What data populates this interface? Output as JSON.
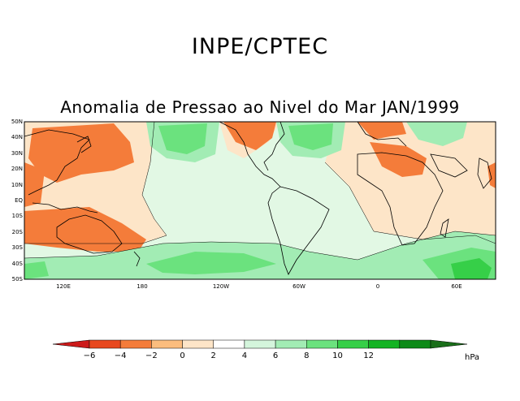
{
  "header": {
    "title": "INPE/CPTEC"
  },
  "map": {
    "title": "Anomalia de Pressao ao Nivel do Mar JAN/1999",
    "lat_labels": [
      "50N",
      "40N",
      "30N",
      "20N",
      "10N",
      "EQ",
      "10S",
      "20S",
      "30S",
      "40S",
      "50S"
    ],
    "lon_labels": [
      "120E",
      "180",
      "120W",
      "60W",
      "0",
      "60E"
    ]
  },
  "colorbar": {
    "labels": [
      "−6",
      "−4",
      "−2",
      "0",
      "2",
      "4",
      "6",
      "8",
      "10",
      "12"
    ],
    "unit": "hPa",
    "colors": [
      "#cc1a1a",
      "#e8481e",
      "#f47c3a",
      "#fbbd7e",
      "#fde5c8",
      "#ffffff",
      "#d4f5dc",
      "#a2ecb4",
      "#6be27e",
      "#36cf48",
      "#13b323",
      "#0d8a18",
      "#1a6e1a"
    ]
  },
  "palette": {
    "neg_strong": "#f47c3a",
    "neg_weak": "#fde5c8",
    "neutral": "#e2f8e4",
    "pos_weak": "#a2ecb4",
    "pos_mid": "#6be27e",
    "pos_strong": "#36cf48",
    "coast": "#000000"
  }
}
